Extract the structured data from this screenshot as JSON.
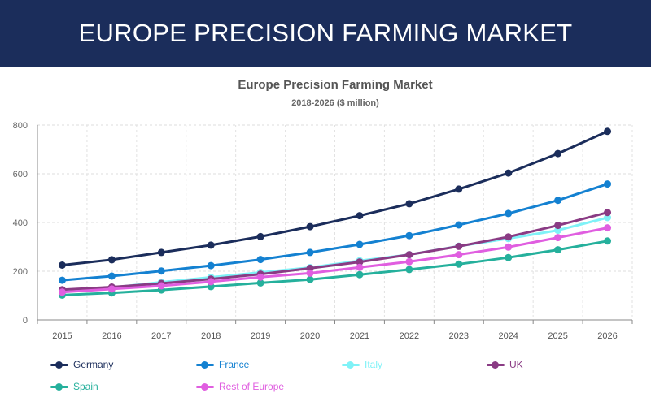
{
  "header": {
    "title": "EUROPE PRECISION FARMING MARKET"
  },
  "chart_data": {
    "type": "line",
    "title": "Europe Precision Farming Market",
    "subtitle": "2018-2026 ($ million)",
    "xlabel": "",
    "ylabel": "",
    "ylim": [
      0,
      800
    ],
    "yticks": [
      0,
      200,
      400,
      600,
      800
    ],
    "x": [
      "2015",
      "2016",
      "2017",
      "2018",
      "2019",
      "2020",
      "2021",
      "2022",
      "2023",
      "2024",
      "2025",
      "2026"
    ],
    "grid": true,
    "legend_position": "bottom",
    "series": [
      {
        "name": "Germany",
        "color": "#1b2d5b",
        "values": [
          225,
          247,
          277,
          307,
          342,
          383,
          428,
          477,
          537,
          603,
          683,
          774
        ]
      },
      {
        "name": "France",
        "color": "#1481d1",
        "values": [
          163,
          180,
          201,
          223,
          248,
          277,
          310,
          346,
          390,
          437,
          491,
          558
        ]
      },
      {
        "name": "Italy",
        "color": "#7ff2f7",
        "values": [
          115,
          133,
          155,
          175,
          195,
          215,
          243,
          268,
          303,
          334,
          368,
          420
        ]
      },
      {
        "name": "UK",
        "color": "#8a3b84",
        "values": [
          124,
          135,
          150,
          168,
          188,
          212,
          238,
          268,
          302,
          341,
          388,
          441
        ]
      },
      {
        "name": "Spain",
        "color": "#25b09c",
        "values": [
          102,
          111,
          123,
          137,
          152,
          166,
          186,
          207,
          229,
          256,
          288,
          324
        ]
      },
      {
        "name": "Rest of Europe",
        "color": "#e05ee0",
        "values": [
          114,
          127,
          140,
          157,
          176,
          192,
          216,
          239,
          268,
          299,
          338,
          378
        ]
      }
    ]
  }
}
